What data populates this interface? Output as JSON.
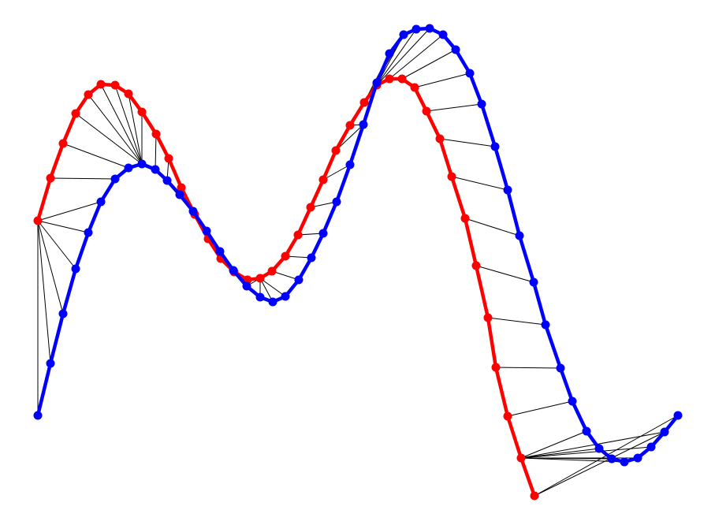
{
  "colors": {
    "curve_a": "#ff0000",
    "curve_b": "#0000ff",
    "matching_lines": "#000000",
    "background": "#ffffff"
  },
  "chart_data": {
    "type": "line",
    "title": "",
    "xlabel": "",
    "ylabel": "",
    "axes_visible": false,
    "grid": false,
    "legend": "none",
    "xlim": [
      40,
      870
    ],
    "ylim": [
      640,
      25
    ],
    "series": [
      {
        "color": "#ff0000",
        "points": [
          [
            48,
            280
          ],
          [
            64,
            226
          ],
          [
            80,
            182
          ],
          [
            96,
            144
          ],
          [
            112,
            120
          ],
          [
            128,
            107
          ],
          [
            146,
            108
          ],
          [
            163,
            119
          ],
          [
            180,
            142
          ],
          [
            198,
            170
          ],
          [
            214,
            201
          ],
          [
            230,
            238
          ],
          [
            247,
            272
          ],
          [
            264,
            303
          ],
          [
            280,
            328
          ],
          [
            297,
            345
          ],
          [
            314,
            355
          ],
          [
            330,
            353
          ],
          [
            345,
            344
          ],
          [
            362,
            325
          ],
          [
            378,
            298
          ],
          [
            394,
            263
          ],
          [
            410,
            228
          ],
          [
            426,
            191
          ],
          [
            444,
            159
          ],
          [
            462,
            130
          ],
          [
            478,
            108
          ],
          [
            494,
            100
          ],
          [
            510,
            100
          ],
          [
            526,
            111
          ],
          [
            541,
            141
          ],
          [
            558,
            176
          ],
          [
            573,
            224
          ],
          [
            590,
            277
          ],
          [
            604,
            337
          ],
          [
            619,
            403
          ],
          [
            629,
            466
          ],
          [
            644,
            528
          ],
          [
            661,
            581
          ],
          [
            678,
            629
          ]
        ]
      },
      {
        "color": "#0000ff",
        "points": [
          [
            48,
            527
          ],
          [
            64,
            461
          ],
          [
            80,
            398
          ],
          [
            96,
            341
          ],
          [
            112,
            295
          ],
          [
            128,
            256
          ],
          [
            146,
            227
          ],
          [
            163,
            213
          ],
          [
            180,
            208
          ],
          [
            197,
            215
          ],
          [
            212,
            229
          ],
          [
            228,
            247
          ],
          [
            245,
            268
          ],
          [
            262,
            293
          ],
          [
            279,
            319
          ],
          [
            296,
            343
          ],
          [
            313,
            363
          ],
          [
            330,
            377
          ],
          [
            346,
            383
          ],
          [
            362,
            376
          ],
          [
            379,
            355
          ],
          [
            395,
            327
          ],
          [
            410,
            296
          ],
          [
            427,
            256
          ],
          [
            444,
            209
          ],
          [
            461,
            158
          ],
          [
            478,
            105
          ],
          [
            494,
            68
          ],
          [
            512,
            44
          ],
          [
            528,
            37
          ],
          [
            545,
            36
          ],
          [
            562,
            44
          ],
          [
            578,
            63
          ],
          [
            596,
            93
          ],
          [
            611,
            132
          ],
          [
            628,
            186
          ],
          [
            644,
            241
          ],
          [
            659,
            299
          ],
          [
            677,
            358
          ],
          [
            692,
            412
          ],
          [
            711,
            467
          ],
          [
            726,
            509
          ],
          [
            744,
            547
          ],
          [
            760,
            569
          ],
          [
            776,
            582
          ],
          [
            792,
            586
          ],
          [
            809,
            581
          ],
          [
            826,
            567
          ],
          [
            843,
            548
          ],
          [
            860,
            527
          ]
        ]
      }
    ],
    "matches": [
      [
        0,
        0
      ],
      [
        0,
        1
      ],
      [
        0,
        2
      ],
      [
        0,
        3
      ],
      [
        0,
        4
      ],
      [
        0,
        5
      ],
      [
        1,
        6
      ],
      [
        2,
        7
      ],
      [
        3,
        8
      ],
      [
        4,
        8
      ],
      [
        5,
        8
      ],
      [
        6,
        8
      ],
      [
        7,
        8
      ],
      [
        8,
        8
      ],
      [
        9,
        9
      ],
      [
        10,
        10
      ],
      [
        11,
        11
      ],
      [
        12,
        12
      ],
      [
        13,
        13
      ],
      [
        14,
        14
      ],
      [
        15,
        15
      ],
      [
        16,
        16
      ],
      [
        17,
        16
      ],
      [
        17,
        17
      ],
      [
        17,
        18
      ],
      [
        17,
        19
      ],
      [
        18,
        20
      ],
      [
        19,
        21
      ],
      [
        20,
        22
      ],
      [
        21,
        23
      ],
      [
        22,
        24
      ],
      [
        23,
        25
      ],
      [
        24,
        25
      ],
      [
        25,
        26
      ],
      [
        25,
        27
      ],
      [
        25,
        28
      ],
      [
        26,
        28
      ],
      [
        26,
        29
      ],
      [
        26,
        30
      ],
      [
        27,
        31
      ],
      [
        28,
        32
      ],
      [
        29,
        33
      ],
      [
        30,
        34
      ],
      [
        31,
        35
      ],
      [
        32,
        36
      ],
      [
        33,
        37
      ],
      [
        34,
        38
      ],
      [
        35,
        39
      ],
      [
        36,
        40
      ],
      [
        37,
        41
      ],
      [
        38,
        42
      ],
      [
        38,
        43
      ],
      [
        38,
        44
      ],
      [
        38,
        45
      ],
      [
        38,
        46
      ],
      [
        38,
        47
      ],
      [
        38,
        48
      ],
      [
        39,
        48
      ],
      [
        39,
        49
      ]
    ]
  }
}
